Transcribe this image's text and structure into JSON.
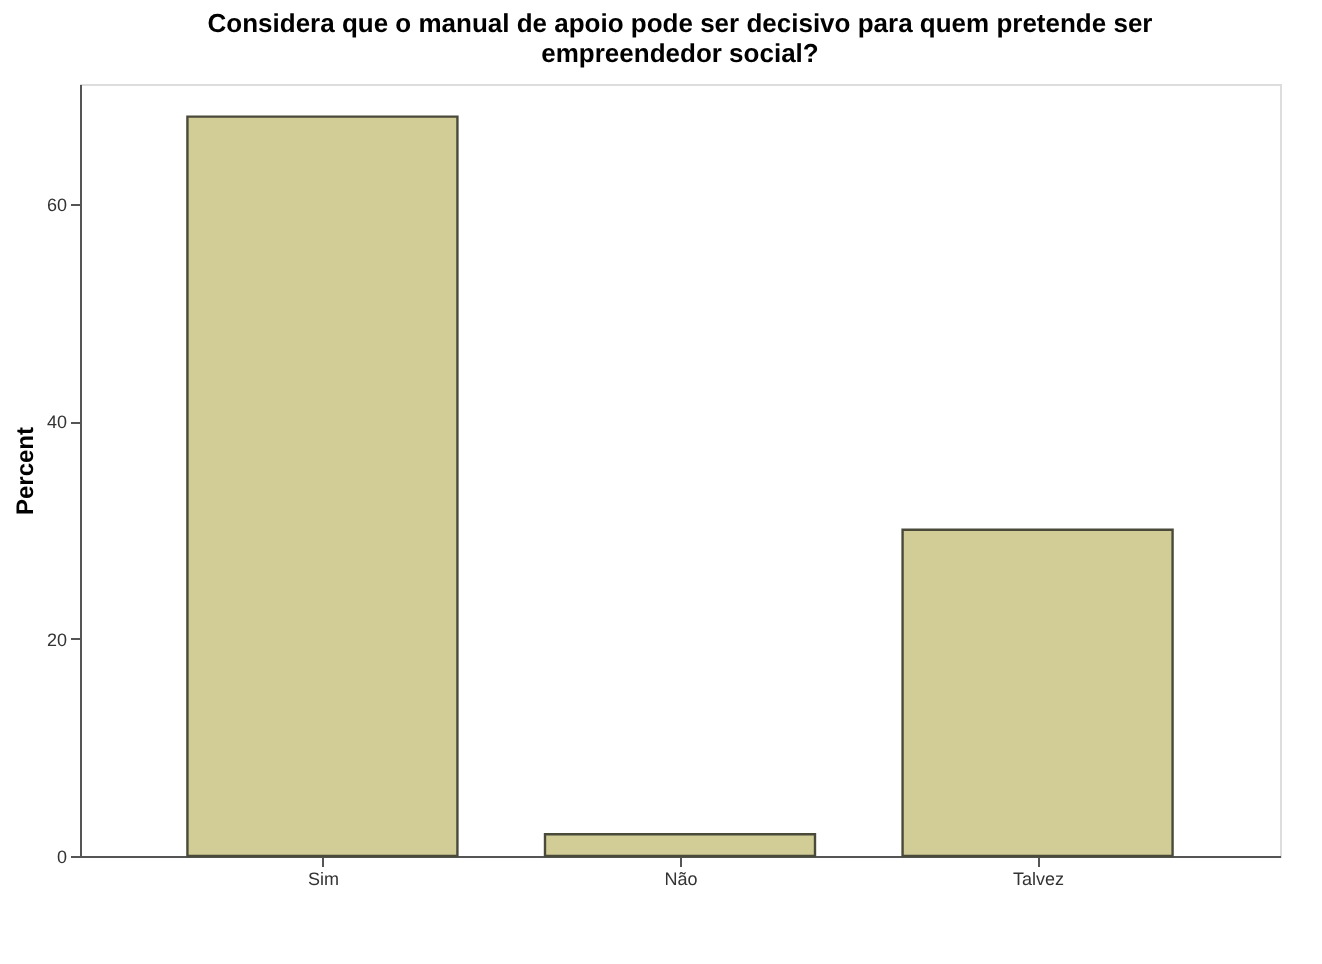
{
  "chart_data": {
    "type": "bar",
    "title": [
      "Considera que o manual de apoio pode ser decisivo para quem pretende ser",
      "empreendedor social?"
    ],
    "ylabel": "Percent",
    "categories": [
      "Sim",
      "Não",
      "Talvez"
    ],
    "values": [
      68,
      2,
      30
    ],
    "color": "#d2cc96",
    "ylim": [
      0,
      71
    ],
    "yticks": [
      0,
      20,
      40,
      60
    ],
    "grid": false
  }
}
